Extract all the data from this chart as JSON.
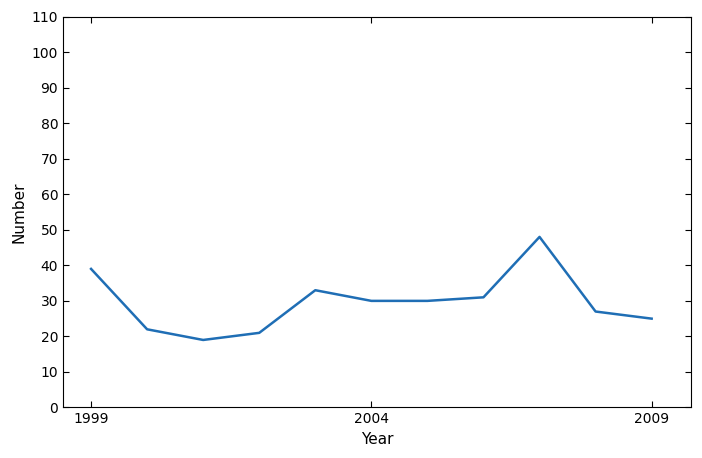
{
  "x_data": [
    1999,
    2000,
    2001,
    2002,
    2003,
    2004,
    2005,
    2006,
    2007,
    2008,
    2009
  ],
  "y_data": [
    39,
    22,
    19,
    21,
    33,
    30,
    30,
    31,
    48,
    27,
    25
  ],
  "line_color": "#1F6EB5",
  "line_width": 1.8,
  "xlabel": "Year",
  "ylabel": "Number",
  "xlim": [
    1998.5,
    2009.7
  ],
  "ylim": [
    0,
    110
  ],
  "yticks": [
    0,
    10,
    20,
    30,
    40,
    50,
    60,
    70,
    80,
    90,
    100,
    110
  ],
  "xticks": [
    1999,
    2004,
    2009
  ],
  "background_color": "#ffffff",
  "tick_label_fontsize": 10,
  "axis_label_fontsize": 11
}
